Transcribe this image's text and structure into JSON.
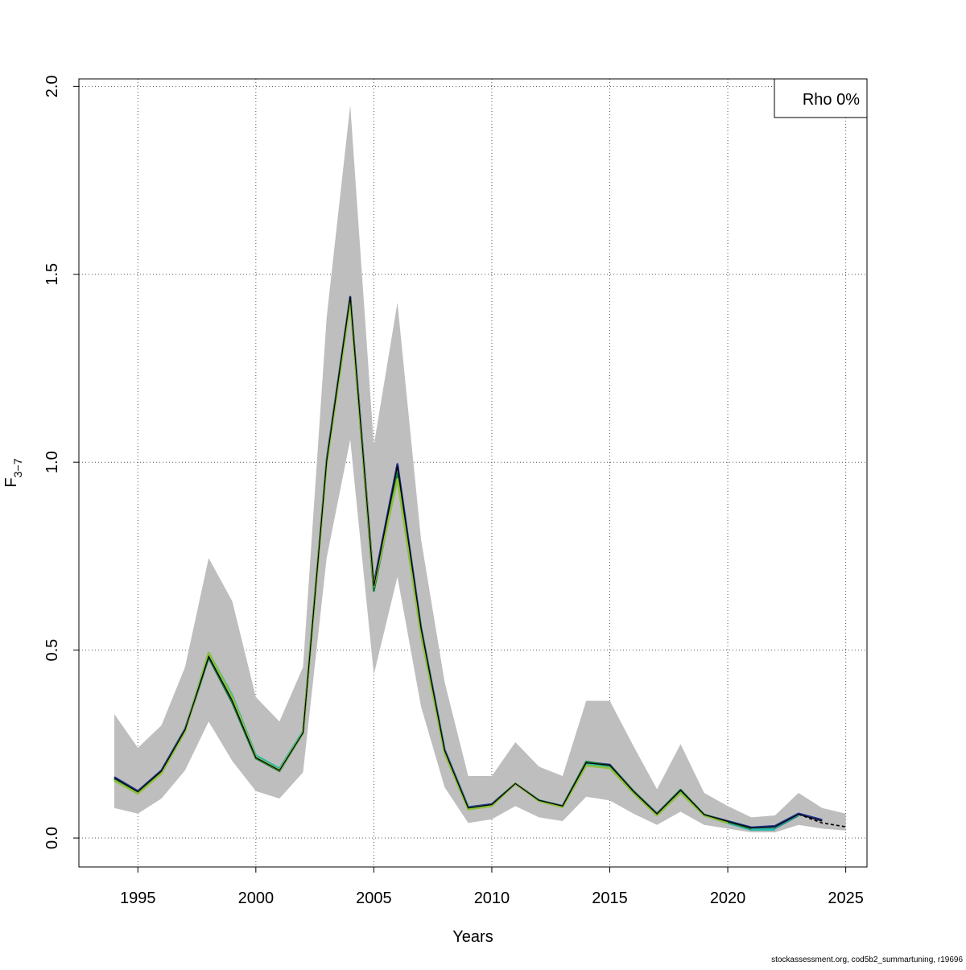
{
  "footer": "stockassessment.org, cod5b2_summartuning, r19696",
  "chart_data": {
    "type": "line",
    "xlabel": "Years",
    "ylabel_main": "F",
    "ylabel_sub": "3−7",
    "xlim": [
      1992.5,
      2025.9
    ],
    "ylim": [
      -0.077,
      2.02
    ],
    "xticks": [
      1995,
      2000,
      2005,
      2010,
      2015,
      2020,
      2025
    ],
    "yticks": [
      0.0,
      0.5,
      1.0,
      1.5,
      2.0
    ],
    "ytick_labels": [
      "0.0",
      "0.5",
      "1.0",
      "1.5",
      "2.0"
    ],
    "grid": true,
    "legend_position": "top-right",
    "legend": "Rho 0%",
    "band": {
      "x": [
        1994,
        1995,
        1996,
        1997,
        1998,
        1999,
        2000,
        2001,
        2002,
        2003,
        2004,
        2005,
        2006,
        2007,
        2008,
        2009,
        2010,
        2011,
        2012,
        2013,
        2014,
        2015,
        2016,
        2017,
        2018,
        2019,
        2020,
        2021,
        2022,
        2023,
        2024,
        2025
      ],
      "lower": [
        0.08,
        0.065,
        0.105,
        0.18,
        0.31,
        0.205,
        0.125,
        0.105,
        0.175,
        0.745,
        1.06,
        0.435,
        0.695,
        0.35,
        0.135,
        0.04,
        0.05,
        0.085,
        0.055,
        0.045,
        0.11,
        0.1,
        0.065,
        0.035,
        0.07,
        0.035,
        0.025,
        0.015,
        0.015,
        0.035,
        0.025,
        0.02
      ],
      "upper": [
        0.33,
        0.24,
        0.3,
        0.455,
        0.745,
        0.63,
        0.375,
        0.31,
        0.455,
        1.385,
        1.95,
        1.045,
        1.425,
        0.795,
        0.415,
        0.165,
        0.165,
        0.255,
        0.19,
        0.165,
        0.365,
        0.365,
        0.245,
        0.13,
        0.25,
        0.12,
        0.085,
        0.055,
        0.06,
        0.12,
        0.08,
        0.065
      ]
    },
    "series": [
      {
        "color": "#1f2f8c",
        "x": [
          1994,
          1995,
          1996,
          1997,
          1998,
          1999,
          2000,
          2001,
          2002,
          2003,
          2004,
          2005,
          2006,
          2007,
          2008,
          2009,
          2010,
          2011,
          2012,
          2013,
          2014,
          2015,
          2016,
          2017,
          2018,
          2019,
          2020,
          2021,
          2022,
          2023,
          2024
        ],
        "values": [
          0.162,
          0.125,
          0.18,
          0.29,
          0.485,
          0.365,
          0.215,
          0.18,
          0.28,
          1.005,
          1.44,
          0.675,
          0.995,
          0.56,
          0.235,
          0.082,
          0.09,
          0.145,
          0.1,
          0.085,
          0.202,
          0.195,
          0.125,
          0.065,
          0.128,
          0.062,
          0.045,
          0.028,
          0.032,
          0.065,
          0.048
        ]
      },
      {
        "color": "#2a8f8a",
        "x": [
          1994,
          1995,
          1996,
          1997,
          1998,
          1999,
          2000,
          2001,
          2002,
          2003,
          2004,
          2005,
          2006,
          2007,
          2008,
          2009,
          2010,
          2011,
          2012,
          2013,
          2014,
          2015,
          2016,
          2017,
          2018,
          2019,
          2020,
          2021,
          2022,
          2023
        ],
        "values": [
          0.158,
          0.122,
          0.176,
          0.288,
          0.49,
          0.375,
          0.218,
          0.182,
          0.282,
          1.0,
          1.43,
          0.665,
          0.975,
          0.555,
          0.232,
          0.08,
          0.088,
          0.145,
          0.1,
          0.084,
          0.2,
          0.192,
          0.124,
          0.064,
          0.126,
          0.062,
          0.042,
          0.024,
          0.026,
          0.06
        ]
      },
      {
        "color": "#2fb8a8",
        "x": [
          1994,
          1995,
          1996,
          1997,
          1998,
          1999,
          2000,
          2001,
          2002,
          2003,
          2004,
          2005,
          2006,
          2007,
          2008,
          2009,
          2010,
          2011,
          2012,
          2013,
          2014,
          2015,
          2016,
          2017,
          2018,
          2019,
          2020,
          2021,
          2022
        ],
        "values": [
          0.156,
          0.12,
          0.174,
          0.286,
          0.493,
          0.38,
          0.22,
          0.185,
          0.284,
          1.0,
          1.432,
          0.66,
          0.965,
          0.55,
          0.23,
          0.079,
          0.087,
          0.145,
          0.099,
          0.083,
          0.198,
          0.19,
          0.123,
          0.063,
          0.125,
          0.06,
          0.04,
          0.022,
          0.022
        ]
      },
      {
        "color": "#1a7a3a",
        "x": [
          1994,
          1995,
          1996,
          1997,
          1998,
          1999,
          2000,
          2001,
          2002,
          2003,
          2004,
          2005,
          2006,
          2007,
          2008,
          2009,
          2010,
          2011,
          2012,
          2013,
          2014,
          2015,
          2016,
          2017,
          2018,
          2019,
          2020,
          2021
        ],
        "values": [
          0.157,
          0.12,
          0.175,
          0.287,
          0.48,
          0.36,
          0.212,
          0.178,
          0.28,
          1.0,
          1.435,
          0.658,
          0.97,
          0.555,
          0.23,
          0.078,
          0.087,
          0.145,
          0.1,
          0.084,
          0.203,
          0.193,
          0.125,
          0.064,
          0.128,
          0.062,
          0.043,
          0.025
        ]
      },
      {
        "color": "#8fbf3a",
        "x": [
          1994,
          1995,
          1996,
          1997,
          1998,
          1999,
          2000,
          2001,
          2002,
          2003,
          2004,
          2005,
          2006,
          2007,
          2008,
          2009,
          2010,
          2011,
          2012,
          2013,
          2014,
          2015,
          2016,
          2017,
          2018,
          2019,
          2020
        ],
        "values": [
          0.153,
          0.118,
          0.172,
          0.284,
          0.493,
          0.375,
          0.215,
          0.18,
          0.28,
          0.995,
          1.425,
          0.67,
          0.955,
          0.54,
          0.225,
          0.076,
          0.085,
          0.145,
          0.098,
          0.082,
          0.193,
          0.186,
          0.12,
          0.06,
          0.12,
          0.06,
          0.04
        ]
      }
    ],
    "estimate_line": {
      "color": "#000000",
      "x": [
        1994,
        1995,
        1996,
        1997,
        1998,
        1999,
        2000,
        2001,
        2002,
        2003,
        2004,
        2005,
        2006,
        2007,
        2008,
        2009,
        2010,
        2011,
        2012,
        2013,
        2014,
        2015,
        2016,
        2017,
        2018,
        2019,
        2020,
        2021,
        2022,
        2023,
        2024
      ],
      "values": [
        0.16,
        0.123,
        0.178,
        0.288,
        0.483,
        0.365,
        0.214,
        0.18,
        0.28,
        1.002,
        1.44,
        0.67,
        0.99,
        0.558,
        0.233,
        0.08,
        0.089,
        0.145,
        0.1,
        0.085,
        0.2,
        0.194,
        0.124,
        0.064,
        0.127,
        0.062,
        0.044,
        0.027,
        0.03,
        0.063,
        0.045
      ]
    },
    "forecast_line": {
      "color": "#000000",
      "style": "dashed",
      "x": [
        2023,
        2024,
        2025
      ],
      "values": [
        0.063,
        0.04,
        0.03
      ]
    }
  }
}
